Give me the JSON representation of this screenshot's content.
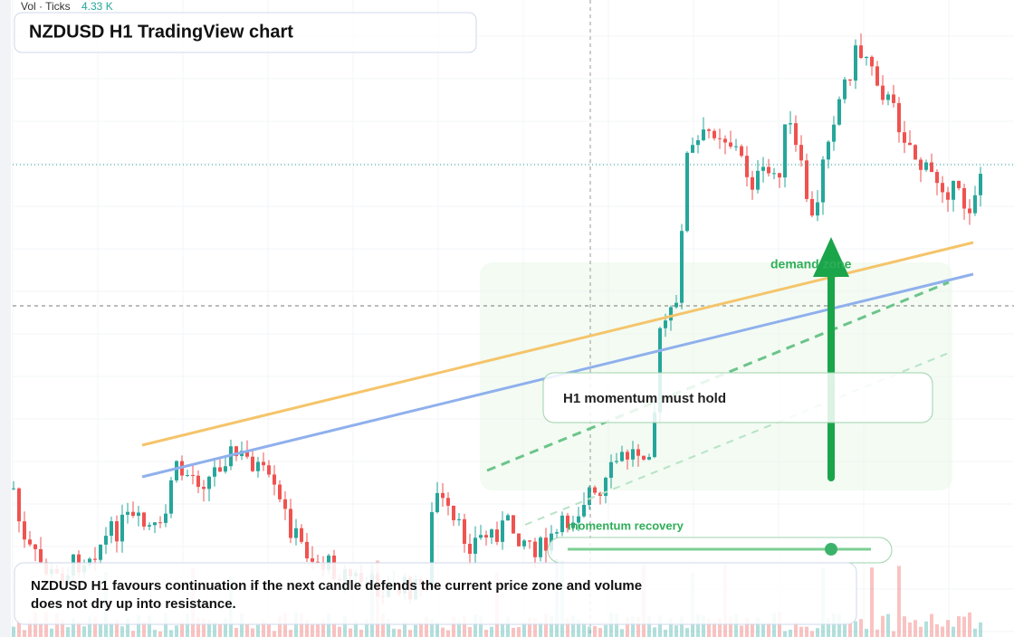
{
  "header": {
    "indicator": "Vol · Ticks",
    "indicator_value": "4.33 K",
    "title": "NZDUSD H1 TradingView chart"
  },
  "annotations": {
    "zone": "demand zone",
    "callout": "H1 momentum must hold",
    "slider_label": "momentum recovery"
  },
  "caption": [
    "NZDUSD H1 favours continuation if the next candle defends the current price zone and volume",
    "does not dry up into resistance."
  ]
}
